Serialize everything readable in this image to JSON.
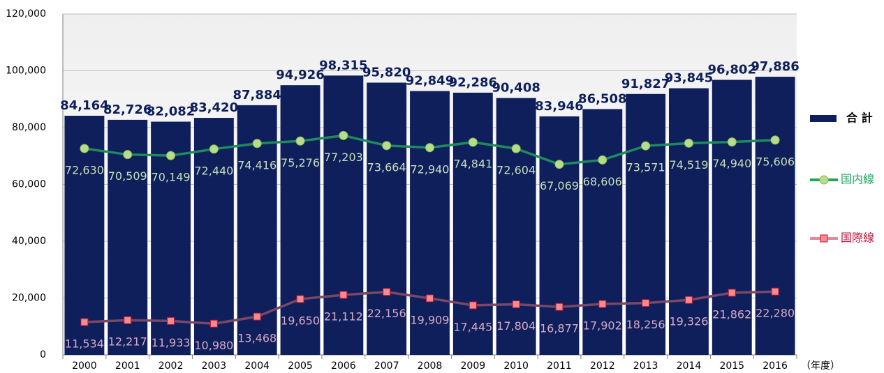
{
  "chart_data": {
    "type": "bar",
    "x_label": "（年度）",
    "categories": [
      "2000",
      "2001",
      "2002",
      "2003",
      "2004",
      "2005",
      "2006",
      "2007",
      "2008",
      "2009",
      "2010",
      "2011",
      "2012",
      "2013",
      "2014",
      "2015",
      "2016"
    ],
    "series": [
      {
        "name": "合 計",
        "type": "bar",
        "color": "#0e1f5b",
        "values": [
          84164,
          82726,
          82082,
          83420,
          87884,
          94926,
          98315,
          95820,
          92849,
          92286,
          90408,
          83946,
          86508,
          91827,
          93845,
          96802,
          97886
        ],
        "value_labels": [
          "84,164",
          "82,726",
          "82,082",
          "83,420",
          "87,884",
          "94,926",
          "98,315",
          "95,820",
          "92,849",
          "92,286",
          "90,408",
          "83,946",
          "86,508",
          "91,827",
          "93,845",
          "96,802",
          "97,886"
        ]
      },
      {
        "name": "国内線",
        "type": "line",
        "color": "#1f8a5c",
        "values": [
          72630,
          70509,
          70149,
          72440,
          74416,
          75276,
          77203,
          73664,
          72940,
          74841,
          72604,
          67069,
          68606,
          73571,
          74519,
          74940,
          75606
        ],
        "value_labels": [
          "72,630",
          "70,509",
          "70,149",
          "72,440",
          "74,416",
          "75,276",
          "77,203",
          "73,664",
          "72,940",
          "74,841",
          "72,604",
          "67,069",
          "68,606",
          "73,571",
          "74,519",
          "74,940",
          "75,606"
        ]
      },
      {
        "name": "国際線",
        "type": "line",
        "color": "#7a4865",
        "values": [
          11534,
          12217,
          11933,
          10980,
          13468,
          19650,
          21112,
          22156,
          19909,
          17445,
          17804,
          16877,
          17902,
          18256,
          19326,
          21862,
          22280
        ],
        "value_labels": [
          "11,534",
          "12,217",
          "11,933",
          "10,980",
          "13,468",
          "19,650",
          "21,112",
          "22,156",
          "19,909",
          "17,445",
          "17,804",
          "16,877",
          "17,902",
          "18,256",
          "19,326",
          "21,862",
          "22,280"
        ]
      }
    ],
    "ylim": [
      0,
      120000
    ],
    "yticks": [
      0,
      {
        "value": 20000,
        "label": "20,000"
      },
      {
        "value": 40000,
        "label": "40,000"
      },
      {
        "value": 60000,
        "label": "60,000"
      },
      {
        "value": 80000,
        "label": "80,000"
      },
      {
        "value": 100000,
        "label": "100,000"
      },
      {
        "value": 120000,
        "label": "120,000"
      }
    ],
    "grid": true,
    "legend": "right"
  }
}
